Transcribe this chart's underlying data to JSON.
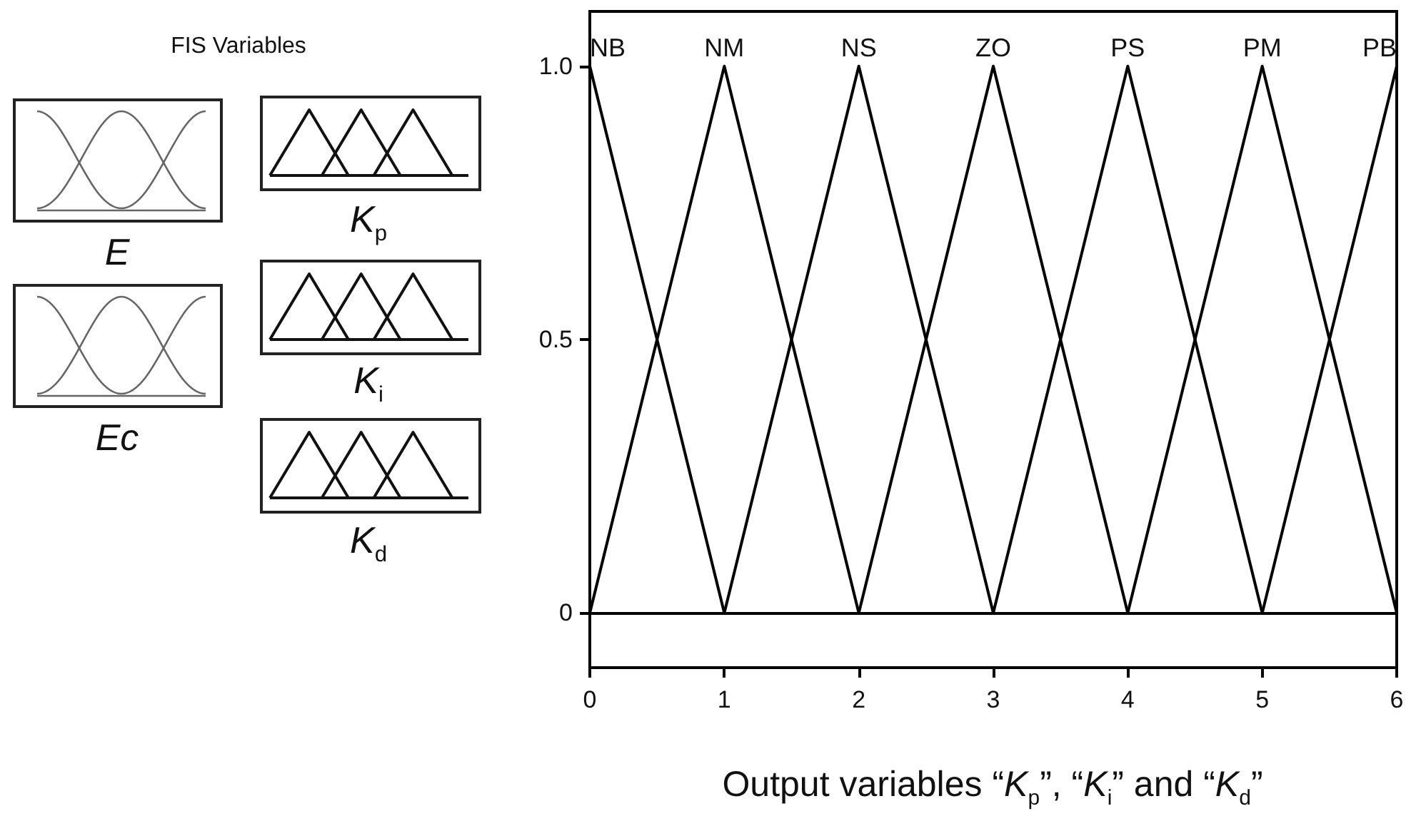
{
  "chart_data": {
    "type": "line",
    "xlabel": "Output variables “K$_{p}$”, “K$_{i}$” and “K$_{d}$”",
    "annotations": [
      "FIS Variables",
      "E",
      "Ec",
      "K$_{p}$",
      "K$_{i}$",
      "K$_{d}$"
    ],
    "series": [
      {
        "name": "NB",
        "color": "#000000",
        "x": [
          0,
          1
        ],
        "values": [
          1,
          0
        ]
      },
      {
        "name": "NM",
        "color": "#000000",
        "x": [
          0,
          1,
          2
        ],
        "values": [
          0,
          1,
          0
        ]
      },
      {
        "name": "NS",
        "color": "#000000",
        "x": [
          1,
          2,
          3
        ],
        "values": [
          0,
          1,
          0
        ]
      },
      {
        "name": "ZO",
        "color": "#000000",
        "x": [
          2,
          3,
          4
        ],
        "values": [
          0,
          1,
          0
        ]
      },
      {
        "name": "PS",
        "color": "#000000",
        "x": [
          3,
          4,
          5
        ],
        "values": [
          0,
          1,
          0
        ]
      },
      {
        "name": "PM",
        "color": "#000000",
        "x": [
          4,
          5,
          6
        ],
        "values": [
          0,
          1,
          0
        ]
      },
      {
        "name": "PB",
        "color": "#000000",
        "x": [
          5,
          6
        ],
        "values": [
          0,
          1
        ]
      }
    ],
    "xlim": [
      0,
      6
    ],
    "xticks": [
      0,
      1,
      2,
      3,
      4,
      5,
      6
    ],
    "ylim": [
      -0.1,
      1.1
    ],
    "yticks": [
      {
        "value": 1,
        "label": "1.0"
      },
      {
        "value": 0.5,
        "label": "0.5"
      },
      0
    ],
    "ref_lines": [
      {
        "axis": "y",
        "value": 0,
        "color": "#000000",
        "line_style": "solid"
      }
    ],
    "grid": false,
    "legend": false,
    "marker": "none",
    "line_style": "solid"
  }
}
